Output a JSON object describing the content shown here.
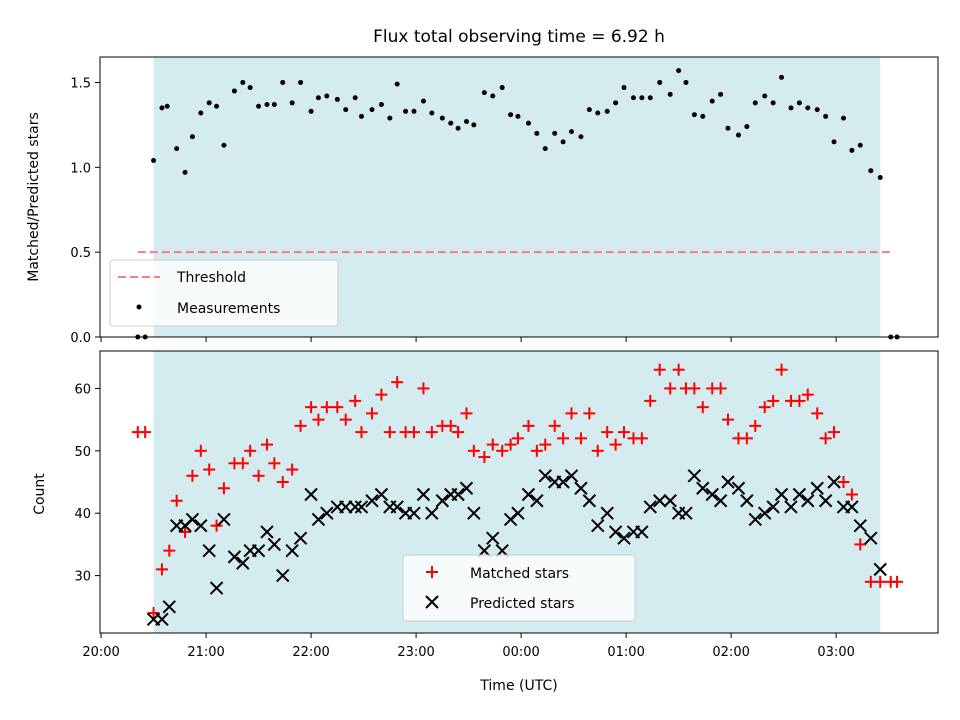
{
  "chart_data": [
    {
      "type": "scatter",
      "title": "Flux total observing time = 6.92 h",
      "xlabel": "",
      "ylabel": "Matched/Predicted stars",
      "ylim": [
        0,
        1.65
      ],
      "yticks": [
        "0.0",
        "0.5",
        "1.0",
        "1.5"
      ],
      "ytick_values": [
        0.0,
        0.5,
        1.0,
        1.5
      ],
      "x_range_hours": [
        19.99,
        27.97
      ],
      "xticks_hours": [
        20,
        21,
        22,
        23,
        24,
        25,
        26,
        27
      ],
      "observing_window_hours": [
        20.5,
        27.42
      ],
      "threshold": {
        "name": "Threshold",
        "value": 0.5,
        "x_hours": [
          20.35,
          27.55
        ],
        "color": "#f08080"
      },
      "shade_color": "#d4ebf0",
      "legend_position": "lower left",
      "series": [
        {
          "name": "Measurements",
          "color": "#000000",
          "marker": "dot",
          "x_hours": [
            20.35,
            20.42,
            20.5,
            20.58,
            20.63,
            20.72,
            20.8,
            20.87,
            20.95,
            21.03,
            21.1,
            21.17,
            21.27,
            21.35,
            21.42,
            21.5,
            21.58,
            21.65,
            21.73,
            21.82,
            21.9,
            22.0,
            22.07,
            22.15,
            22.25,
            22.33,
            22.42,
            22.48,
            22.58,
            22.67,
            22.75,
            22.82,
            22.9,
            22.98,
            23.07,
            23.15,
            23.25,
            23.33,
            23.4,
            23.48,
            23.55,
            23.65,
            23.73,
            23.82,
            23.9,
            23.97,
            24.07,
            24.15,
            24.23,
            24.32,
            24.4,
            24.48,
            24.57,
            24.65,
            24.73,
            24.82,
            24.9,
            24.98,
            25.07,
            25.15,
            25.23,
            25.32,
            25.42,
            25.5,
            25.57,
            25.65,
            25.73,
            25.82,
            25.9,
            25.97,
            26.07,
            26.15,
            26.23,
            26.32,
            26.4,
            26.48,
            26.57,
            26.65,
            26.73,
            26.82,
            26.9,
            26.98,
            27.07,
            27.15,
            27.23,
            27.33,
            27.42,
            27.52,
            27.58
          ],
          "y": [
            0.0,
            0.0,
            1.04,
            1.35,
            1.36,
            1.11,
            0.97,
            1.18,
            1.32,
            1.38,
            1.36,
            1.13,
            1.45,
            1.5,
            1.47,
            1.36,
            1.37,
            1.37,
            1.5,
            1.38,
            1.5,
            1.33,
            1.41,
            1.42,
            1.4,
            1.34,
            1.41,
            1.3,
            1.34,
            1.37,
            1.29,
            1.49,
            1.33,
            1.33,
            1.39,
            1.32,
            1.29,
            1.26,
            1.23,
            1.27,
            1.25,
            1.44,
            1.42,
            1.47,
            1.31,
            1.3,
            1.26,
            1.2,
            1.11,
            1.2,
            1.15,
            1.21,
            1.18,
            1.34,
            1.32,
            1.33,
            1.38,
            1.47,
            1.41,
            1.41,
            1.41,
            1.5,
            1.43,
            1.57,
            1.5,
            1.31,
            1.3,
            1.39,
            1.43,
            1.23,
            1.19,
            1.24,
            1.38,
            1.42,
            1.38,
            1.53,
            1.35,
            1.38,
            1.35,
            1.34,
            1.3,
            1.15,
            1.29,
            1.1,
            1.13,
            0.98,
            0.94,
            0.0,
            0.0
          ]
        }
      ]
    },
    {
      "type": "scatter",
      "title": "",
      "xlabel": "Time (UTC)",
      "ylabel": "Count",
      "ylim": [
        20.8,
        66.0
      ],
      "yticks": [
        "30",
        "40",
        "50",
        "60"
      ],
      "ytick_values": [
        30,
        40,
        50,
        60
      ],
      "x_range_hours": [
        19.99,
        27.97
      ],
      "xticks_hours": [
        20,
        21,
        22,
        23,
        24,
        25,
        26,
        27
      ],
      "xtick_labels": [
        "20:00",
        "21:00",
        "22:00",
        "23:00",
        "00:00",
        "01:00",
        "02:00",
        "03:00"
      ],
      "observing_window_hours": [
        20.5,
        27.42
      ],
      "shade_color": "#d4ebf0",
      "legend_position": "lower center",
      "series": [
        {
          "name": "Matched stars",
          "color": "#ff0000",
          "marker": "plus",
          "x_hours": [
            20.35,
            20.42,
            20.5,
            20.58,
            20.65,
            20.72,
            20.8,
            20.87,
            20.95,
            21.03,
            21.1,
            21.17,
            21.27,
            21.35,
            21.42,
            21.5,
            21.58,
            21.65,
            21.73,
            21.82,
            21.9,
            22.0,
            22.07,
            22.15,
            22.25,
            22.33,
            22.42,
            22.48,
            22.58,
            22.67,
            22.75,
            22.82,
            22.9,
            22.98,
            23.07,
            23.15,
            23.25,
            23.33,
            23.4,
            23.48,
            23.55,
            23.65,
            23.73,
            23.82,
            23.9,
            23.97,
            24.07,
            24.15,
            24.23,
            24.32,
            24.4,
            24.48,
            24.57,
            24.65,
            24.73,
            24.82,
            24.9,
            24.98,
            25.07,
            25.15,
            25.23,
            25.32,
            25.42,
            25.5,
            25.57,
            25.65,
            25.73,
            25.82,
            25.9,
            25.97,
            26.07,
            26.15,
            26.23,
            26.32,
            26.4,
            26.48,
            26.57,
            26.65,
            26.73,
            26.82,
            26.9,
            26.98,
            27.07,
            27.15,
            27.23,
            27.33,
            27.42,
            27.52,
            27.58
          ],
          "y": [
            53,
            53,
            24,
            31,
            34,
            42,
            37,
            46,
            50,
            47,
            38,
            44,
            48,
            48,
            50,
            46,
            51,
            48,
            45,
            47,
            54,
            57,
            55,
            57,
            57,
            55,
            58,
            53,
            56,
            59,
            53,
            61,
            53,
            53,
            60,
            53,
            54,
            54,
            53,
            56,
            50,
            49,
            51,
            50,
            51,
            52,
            54,
            50,
            51,
            54,
            52,
            56,
            52,
            56,
            50,
            53,
            51,
            53,
            52,
            52,
            58,
            63,
            60,
            63,
            60,
            60,
            57,
            60,
            60,
            55,
            52,
            52,
            54,
            57,
            58,
            63,
            58,
            58,
            59,
            56,
            52,
            53,
            45,
            43,
            35,
            29,
            29,
            29,
            29
          ]
        },
        {
          "name": "Predicted stars",
          "color": "#000000",
          "marker": "x",
          "x_hours": [
            20.5,
            20.58,
            20.65,
            20.72,
            20.8,
            20.87,
            20.95,
            21.03,
            21.1,
            21.17,
            21.27,
            21.35,
            21.42,
            21.5,
            21.58,
            21.65,
            21.73,
            21.82,
            21.9,
            22.0,
            22.07,
            22.15,
            22.25,
            22.33,
            22.42,
            22.48,
            22.58,
            22.67,
            22.75,
            22.82,
            22.9,
            22.98,
            23.07,
            23.15,
            23.25,
            23.33,
            23.4,
            23.48,
            23.55,
            23.65,
            23.73,
            23.82,
            23.9,
            23.97,
            24.07,
            24.15,
            24.23,
            24.32,
            24.4,
            24.48,
            24.57,
            24.65,
            24.73,
            24.82,
            24.9,
            24.98,
            25.07,
            25.15,
            25.23,
            25.32,
            25.42,
            25.5,
            25.57,
            25.65,
            25.73,
            25.82,
            25.9,
            25.97,
            26.07,
            26.15,
            26.23,
            26.32,
            26.4,
            26.48,
            26.57,
            26.65,
            26.73,
            26.82,
            26.9,
            26.98,
            27.07,
            27.15,
            27.23,
            27.33,
            27.42
          ],
          "y": [
            23,
            23,
            25,
            38,
            38,
            39,
            38,
            34,
            28,
            39,
            33,
            32,
            34,
            34,
            37,
            35,
            30,
            34,
            36,
            43,
            39,
            40,
            41,
            41,
            41,
            41,
            42,
            43,
            41,
            41,
            40,
            40,
            43,
            40,
            42,
            43,
            43,
            44,
            40,
            34,
            36,
            34,
            39,
            40,
            43,
            42,
            46,
            45,
            45,
            46,
            44,
            42,
            38,
            40,
            37,
            36,
            37,
            37,
            41,
            42,
            42,
            40,
            40,
            46,
            44,
            43,
            42,
            45,
            44,
            42,
            39,
            40,
            41,
            43,
            41,
            43,
            42,
            44,
            42,
            45,
            41,
            41,
            38,
            36,
            31
          ]
        }
      ]
    }
  ]
}
